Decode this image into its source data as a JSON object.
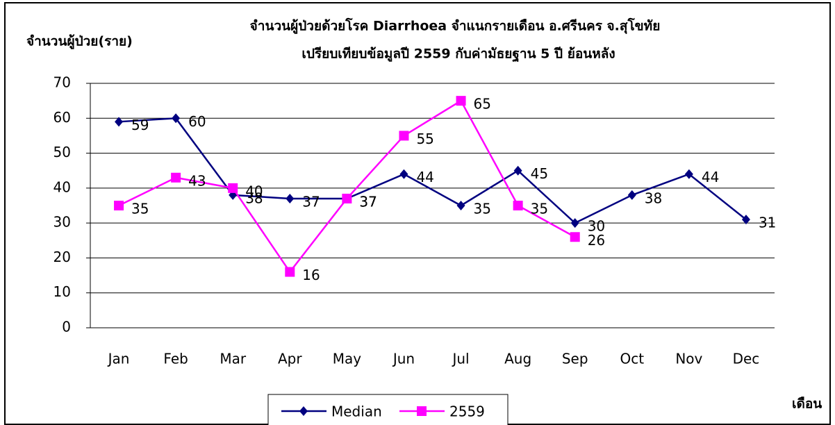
{
  "chart_data": {
    "type": "line",
    "title": "จำนวนผู้ป่วยด้วยโรค  Diarrhoea  จำแนกรายเดือน     อ.ศรีนคร จ.สุโขทัย",
    "subtitle": "เปรียบเทียบข้อมูลปี  2559  กับค่ามัธยฐาน 5 ปี ย้อนหลัง",
    "y_label": "จำนวนผู้ป่วย(ราย)",
    "x_label": "เดือน",
    "categories": [
      "Jan",
      "Feb",
      "Mar",
      "Apr",
      "May",
      "Jun",
      "Jul",
      "Aug",
      "Sep",
      "Oct",
      "Nov",
      "Dec"
    ],
    "series": [
      {
        "name": "Median",
        "color": "#000080",
        "marker": "diamond",
        "values": [
          59,
          60,
          38,
          37,
          37,
          44,
          35,
          45,
          30,
          38,
          44,
          31
        ]
      },
      {
        "name": "2559",
        "color": "#ff00ff",
        "marker": "square",
        "values": [
          35,
          43,
          40,
          16,
          37,
          55,
          65,
          35,
          26,
          null,
          null,
          null
        ]
      }
    ],
    "ylim": [
      0,
      70
    ],
    "yticks": [
      0,
      10,
      20,
      30,
      40,
      50,
      60,
      70
    ],
    "grid": true,
    "legend": "bottom"
  }
}
